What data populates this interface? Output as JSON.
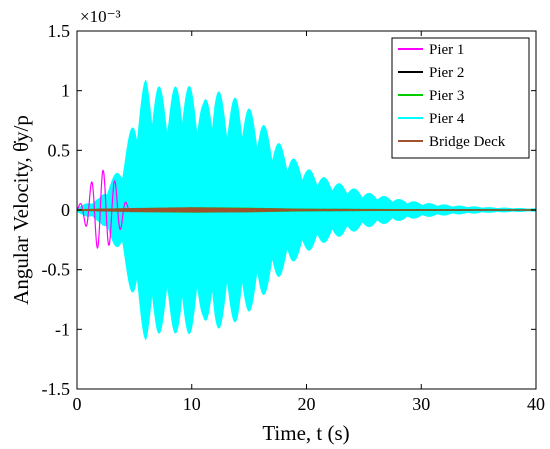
{
  "chart_data": {
    "type": "line",
    "title": "",
    "xlabel": "Time, t (s)",
    "ylabel": "Angular Velocity, θ̇y/p",
    "exponent_label": "×10⁻³",
    "xlim": [
      0,
      40
    ],
    "ylim": [
      -1.5,
      1.5
    ],
    "xticks": [
      0,
      10,
      20,
      30,
      40
    ],
    "yticks": [
      -1.5,
      -1,
      -0.5,
      0,
      0.5,
      1,
      1.5
    ],
    "xtick_labels": [
      "0",
      "10",
      "20",
      "30",
      "40"
    ],
    "ytick_labels": [
      "-1.5",
      "-1",
      "-0.5",
      "0",
      "0.5",
      "1",
      "1.5"
    ],
    "grid": false,
    "legend_position": "top-right",
    "series": [
      {
        "name": "Pier 1",
        "color": "#ff00ff",
        "envelope": [
          [
            0,
            0.02
          ],
          [
            0.5,
            0.08
          ],
          [
            1,
            0.18
          ],
          [
            1.5,
            0.28
          ],
          [
            2,
            0.35
          ],
          [
            2.5,
            0.32
          ],
          [
            3,
            0.28
          ],
          [
            3.5,
            0.22
          ],
          [
            4,
            0.12
          ],
          [
            4.5,
            0.02
          ],
          [
            5,
            0.01
          ],
          [
            40,
            0.0
          ]
        ]
      },
      {
        "name": "Pier 2",
        "color": "#000000",
        "envelope": [
          [
            0,
            0.003
          ],
          [
            5,
            0.01
          ],
          [
            10,
            0.015
          ],
          [
            15,
            0.012
          ],
          [
            20,
            0.006
          ],
          [
            30,
            0.003
          ],
          [
            40,
            0.001
          ]
        ]
      },
      {
        "name": "Pier 3",
        "color": "#00cc00",
        "envelope": [
          [
            0,
            0.004
          ],
          [
            5,
            0.012
          ],
          [
            10,
            0.02
          ],
          [
            15,
            0.016
          ],
          [
            20,
            0.008
          ],
          [
            30,
            0.003
          ],
          [
            40,
            0.001
          ]
        ]
      },
      {
        "name": "Pier 4",
        "color": "#00ffff",
        "envelope": [
          [
            0,
            0.02
          ],
          [
            2,
            0.1
          ],
          [
            4,
            0.4
          ],
          [
            5,
            0.8
          ],
          [
            6,
            1.1
          ],
          [
            7,
            1.05
          ],
          [
            8,
            0.95
          ],
          [
            9,
            1.1
          ],
          [
            10,
            1.02
          ],
          [
            11,
            0.9
          ],
          [
            12,
            1.05
          ],
          [
            13,
            0.9
          ],
          [
            14,
            0.95
          ],
          [
            15,
            0.85
          ],
          [
            16,
            0.75
          ],
          [
            17,
            0.62
          ],
          [
            18,
            0.52
          ],
          [
            19,
            0.42
          ],
          [
            20,
            0.35
          ],
          [
            22,
            0.25
          ],
          [
            25,
            0.15
          ],
          [
            28,
            0.09
          ],
          [
            30,
            0.06
          ],
          [
            33,
            0.035
          ],
          [
            36,
            0.02
          ],
          [
            40,
            0.01
          ]
        ]
      },
      {
        "name": "Bridge Deck",
        "color": "#a0522d",
        "envelope": [
          [
            0,
            0.002
          ],
          [
            5,
            0.015
          ],
          [
            10,
            0.02
          ],
          [
            15,
            0.016
          ],
          [
            20,
            0.006
          ],
          [
            30,
            0.002
          ],
          [
            40,
            0.001
          ]
        ]
      }
    ]
  }
}
